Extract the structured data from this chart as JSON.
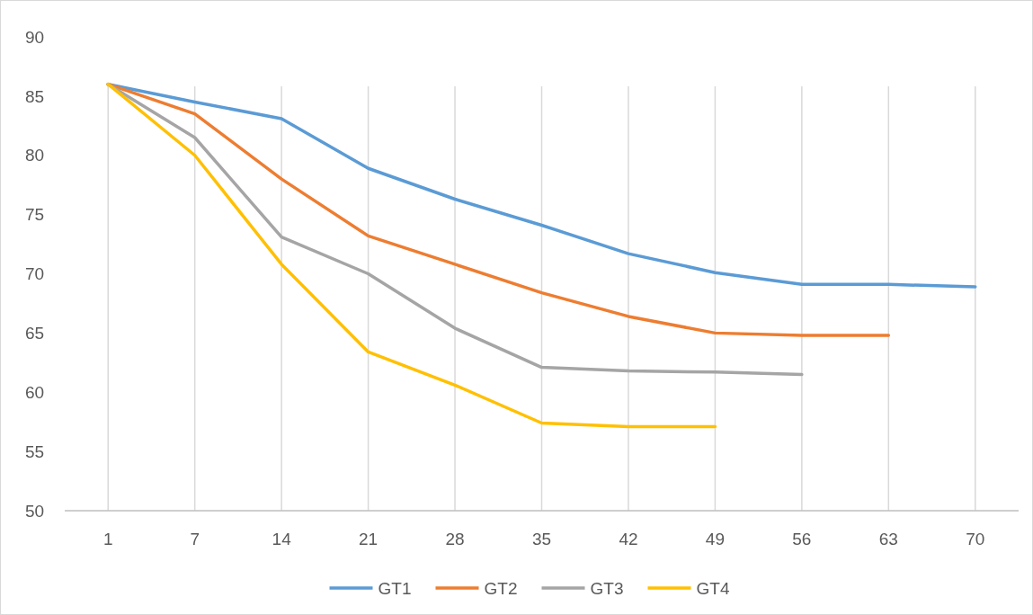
{
  "chart_data": {
    "type": "line",
    "categories": [
      "1",
      "7",
      "14",
      "21",
      "28",
      "35",
      "42",
      "49",
      "56",
      "63",
      "70"
    ],
    "series": [
      {
        "name": "GT1",
        "color": "#5b9bd5",
        "values": [
          86,
          84.5,
          83.1,
          78.9,
          76.3,
          74.1,
          71.7,
          70.1,
          69.1,
          69.1,
          68.9
        ]
      },
      {
        "name": "GT2",
        "color": "#ed7d31",
        "values": [
          86,
          83.5,
          78,
          73.2,
          70.8,
          68.4,
          66.4,
          65,
          64.8,
          64.8,
          null
        ]
      },
      {
        "name": "GT3",
        "color": "#a5a5a5",
        "values": [
          86,
          81.5,
          73.1,
          70,
          65.4,
          62.1,
          61.8,
          61.7,
          61.5,
          null,
          null
        ]
      },
      {
        "name": "GT4",
        "color": "#ffc000",
        "values": [
          86,
          80,
          70.8,
          63.4,
          60.6,
          57.4,
          57.1,
          57.1,
          null,
          null,
          null
        ]
      }
    ],
    "ylim": [
      50,
      90
    ],
    "yticks": [
      50,
      55,
      60,
      65,
      70,
      75,
      80,
      85,
      90
    ],
    "grid": "x",
    "legend": "bottom",
    "marker": "none",
    "line_style": "solid"
  }
}
